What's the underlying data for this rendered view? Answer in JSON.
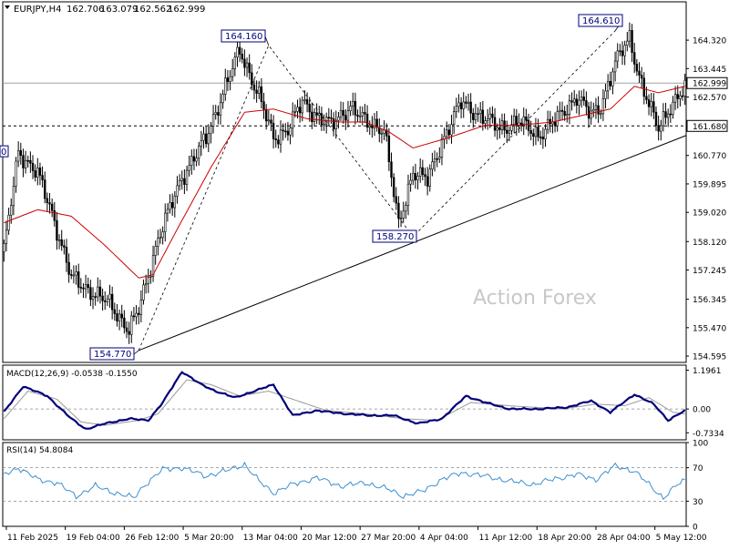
{
  "header": {
    "symbol": "EURJPY,H4",
    "open": "162.706",
    "high": "163.079",
    "low": "162.562",
    "close": "162.999"
  },
  "watermark": "Action Forex",
  "colors": {
    "candle": "#000000",
    "ma": "#cc0000",
    "macd": "#00007a",
    "signal": "#9a9a9a",
    "rsi": "#3c8fd0",
    "background": "#ffffff",
    "watermark": "#c8c8c8"
  },
  "chart_data": [
    {
      "type": "candlestick",
      "panel": "price",
      "yticks": [
        "164.320",
        "163.445",
        "162.570",
        "161.680",
        "160.770",
        "159.895",
        "159.020",
        "158.120",
        "157.245",
        "156.345",
        "155.470",
        "154.595"
      ],
      "ylim": [
        154.4,
        165.5
      ],
      "xticks": [
        "11 Feb 2025",
        "19 Feb 04:00",
        "26 Feb 12:00",
        "5 Mar 20:00",
        "13 Mar 04:00",
        "20 Mar 12:00",
        "27 Mar 20:00",
        "4 Apr 04:00",
        "11 Apr 12:00",
        "18 Apr 20:00",
        "28 Apr 04:00",
        "5 May 12:00"
      ],
      "price_levels": [
        {
          "label": "162.999",
          "value": 162.999,
          "style": "solid"
        },
        {
          "label": "161.680",
          "value": 161.68,
          "style": "dashed"
        }
      ],
      "pivot_labels": [
        {
          "label": "164.160",
          "value": 164.16
        },
        {
          "label": "164.610",
          "value": 164.61
        },
        {
          "label": "158.270",
          "value": 158.27
        },
        {
          "label": "154.770",
          "value": 154.77
        }
      ],
      "left_edge_label": "0",
      "path_anchors": [
        {
          "x": 0,
          "y": 157.8
        },
        {
          "x": 6,
          "y": 160.9
        },
        {
          "x": 14,
          "y": 160.2
        },
        {
          "x": 20,
          "y": 159.0
        },
        {
          "x": 28,
          "y": 157.0
        },
        {
          "x": 36,
          "y": 156.6
        },
        {
          "x": 44,
          "y": 156.2
        },
        {
          "x": 52,
          "y": 155.4
        },
        {
          "x": 56,
          "y": 156.0
        },
        {
          "x": 64,
          "y": 158.2
        },
        {
          "x": 74,
          "y": 160.1
        },
        {
          "x": 84,
          "y": 161.3
        },
        {
          "x": 92,
          "y": 162.9
        },
        {
          "x": 98,
          "y": 164.0
        },
        {
          "x": 106,
          "y": 162.6
        },
        {
          "x": 112,
          "y": 161.3
        },
        {
          "x": 118,
          "y": 161.6
        },
        {
          "x": 124,
          "y": 162.4
        },
        {
          "x": 130,
          "y": 162.0
        },
        {
          "x": 136,
          "y": 161.7
        },
        {
          "x": 144,
          "y": 162.3
        },
        {
          "x": 150,
          "y": 161.8
        },
        {
          "x": 158,
          "y": 161.6
        },
        {
          "x": 164,
          "y": 158.6
        },
        {
          "x": 170,
          "y": 160.3
        },
        {
          "x": 176,
          "y": 160.0
        },
        {
          "x": 182,
          "y": 161.2
        },
        {
          "x": 190,
          "y": 162.4
        },
        {
          "x": 198,
          "y": 162.0
        },
        {
          "x": 206,
          "y": 161.6
        },
        {
          "x": 214,
          "y": 161.8
        },
        {
          "x": 222,
          "y": 161.4
        },
        {
          "x": 230,
          "y": 161.9
        },
        {
          "x": 238,
          "y": 162.6
        },
        {
          "x": 244,
          "y": 162.0
        },
        {
          "x": 248,
          "y": 162.3
        },
        {
          "x": 254,
          "y": 163.6
        },
        {
          "x": 260,
          "y": 164.4
        },
        {
          "x": 264,
          "y": 163.2
        },
        {
          "x": 268,
          "y": 162.3
        },
        {
          "x": 272,
          "y": 161.6
        },
        {
          "x": 276,
          "y": 162.2
        },
        {
          "x": 283,
          "y": 162.8
        }
      ],
      "ma_anchors": [
        {
          "x": 0,
          "y": 158.7
        },
        {
          "x": 14,
          "y": 159.1
        },
        {
          "x": 28,
          "y": 158.9
        },
        {
          "x": 42,
          "y": 158.0
        },
        {
          "x": 56,
          "y": 157.0
        },
        {
          "x": 62,
          "y": 157.1
        },
        {
          "x": 72,
          "y": 158.5
        },
        {
          "x": 86,
          "y": 160.4
        },
        {
          "x": 100,
          "y": 162.1
        },
        {
          "x": 112,
          "y": 162.2
        },
        {
          "x": 126,
          "y": 161.9
        },
        {
          "x": 140,
          "y": 161.8
        },
        {
          "x": 150,
          "y": 161.8
        },
        {
          "x": 160,
          "y": 161.5
        },
        {
          "x": 170,
          "y": 161.0
        },
        {
          "x": 184,
          "y": 161.3
        },
        {
          "x": 200,
          "y": 161.7
        },
        {
          "x": 214,
          "y": 161.7
        },
        {
          "x": 228,
          "y": 161.8
        },
        {
          "x": 240,
          "y": 162.0
        },
        {
          "x": 252,
          "y": 162.2
        },
        {
          "x": 262,
          "y": 162.9
        },
        {
          "x": 272,
          "y": 162.7
        },
        {
          "x": 283,
          "y": 162.9
        }
      ],
      "trend_line": {
        "from": {
          "x": 56,
          "y": 154.77
        },
        "to": {
          "x": 283,
          "y": 161.3
        }
      },
      "zigzag": [
        {
          "x": 56,
          "y": 154.77
        },
        {
          "x": 110,
          "y": 164.16
        },
        {
          "x": 170,
          "y": 158.27
        },
        {
          "x": 254,
          "y": 164.61
        }
      ]
    },
    {
      "type": "line",
      "panel": "macd",
      "title": "MACD(12,26,9) -0.0538 -0.1550",
      "yticks": [
        "1.1961",
        "0.00",
        "-0.7334"
      ],
      "ylim": [
        -0.95,
        1.35
      ],
      "zero_line": 0,
      "series": [
        {
          "name": "MACD",
          "anchors": [
            {
              "x": 0,
              "y": -0.1
            },
            {
              "x": 8,
              "y": 0.7
            },
            {
              "x": 18,
              "y": 0.4
            },
            {
              "x": 28,
              "y": -0.3
            },
            {
              "x": 34,
              "y": -0.62
            },
            {
              "x": 42,
              "y": -0.45
            },
            {
              "x": 52,
              "y": -0.3
            },
            {
              "x": 60,
              "y": -0.35
            },
            {
              "x": 66,
              "y": 0.2
            },
            {
              "x": 74,
              "y": 1.15
            },
            {
              "x": 82,
              "y": 0.75
            },
            {
              "x": 88,
              "y": 0.55
            },
            {
              "x": 96,
              "y": 0.35
            },
            {
              "x": 104,
              "y": 0.55
            },
            {
              "x": 112,
              "y": 0.75
            },
            {
              "x": 120,
              "y": -0.2
            },
            {
              "x": 130,
              "y": -0.05
            },
            {
              "x": 142,
              "y": -0.15
            },
            {
              "x": 152,
              "y": -0.2
            },
            {
              "x": 162,
              "y": -0.2
            },
            {
              "x": 172,
              "y": -0.45
            },
            {
              "x": 182,
              "y": -0.3
            },
            {
              "x": 192,
              "y": 0.4
            },
            {
              "x": 200,
              "y": 0.2
            },
            {
              "x": 210,
              "y": 0.0
            },
            {
              "x": 222,
              "y": 0.0
            },
            {
              "x": 234,
              "y": 0.05
            },
            {
              "x": 244,
              "y": 0.25
            },
            {
              "x": 252,
              "y": -0.1
            },
            {
              "x": 262,
              "y": 0.45
            },
            {
              "x": 270,
              "y": 0.15
            },
            {
              "x": 276,
              "y": -0.35
            },
            {
              "x": 283,
              "y": -0.05
            }
          ]
        },
        {
          "name": "Signal",
          "anchors": [
            {
              "x": 0,
              "y": -0.3
            },
            {
              "x": 10,
              "y": 0.55
            },
            {
              "x": 22,
              "y": 0.3
            },
            {
              "x": 32,
              "y": -0.4
            },
            {
              "x": 42,
              "y": -0.5
            },
            {
              "x": 56,
              "y": -0.35
            },
            {
              "x": 64,
              "y": -0.15
            },
            {
              "x": 76,
              "y": 0.9
            },
            {
              "x": 86,
              "y": 0.75
            },
            {
              "x": 98,
              "y": 0.4
            },
            {
              "x": 110,
              "y": 0.55
            },
            {
              "x": 120,
              "y": 0.3
            },
            {
              "x": 134,
              "y": -0.05
            },
            {
              "x": 150,
              "y": -0.15
            },
            {
              "x": 166,
              "y": -0.3
            },
            {
              "x": 180,
              "y": -0.35
            },
            {
              "x": 194,
              "y": 0.2
            },
            {
              "x": 210,
              "y": 0.1
            },
            {
              "x": 232,
              "y": 0.0
            },
            {
              "x": 246,
              "y": 0.15
            },
            {
              "x": 258,
              "y": 0.1
            },
            {
              "x": 268,
              "y": 0.35
            },
            {
              "x": 278,
              "y": -0.1
            },
            {
              "x": 283,
              "y": -0.15
            }
          ]
        }
      ]
    },
    {
      "type": "line",
      "panel": "rsi",
      "title": "RSI(14) 54.8084",
      "yticks": [
        "100",
        "70",
        "30",
        "0"
      ],
      "ylim": [
        0,
        100
      ],
      "levels": [
        70,
        30
      ],
      "series": [
        {
          "name": "RSI",
          "anchors": [
            {
              "x": 0,
              "y": 62
            },
            {
              "x": 6,
              "y": 70
            },
            {
              "x": 14,
              "y": 56
            },
            {
              "x": 22,
              "y": 52
            },
            {
              "x": 30,
              "y": 36
            },
            {
              "x": 38,
              "y": 48
            },
            {
              "x": 46,
              "y": 40
            },
            {
              "x": 54,
              "y": 34
            },
            {
              "x": 58,
              "y": 48
            },
            {
              "x": 66,
              "y": 68
            },
            {
              "x": 74,
              "y": 70
            },
            {
              "x": 84,
              "y": 60
            },
            {
              "x": 92,
              "y": 66
            },
            {
              "x": 100,
              "y": 74
            },
            {
              "x": 106,
              "y": 54
            },
            {
              "x": 112,
              "y": 40
            },
            {
              "x": 120,
              "y": 50
            },
            {
              "x": 130,
              "y": 58
            },
            {
              "x": 140,
              "y": 48
            },
            {
              "x": 150,
              "y": 52
            },
            {
              "x": 160,
              "y": 44
            },
            {
              "x": 166,
              "y": 36
            },
            {
              "x": 174,
              "y": 42
            },
            {
              "x": 182,
              "y": 56
            },
            {
              "x": 190,
              "y": 64
            },
            {
              "x": 200,
              "y": 60
            },
            {
              "x": 210,
              "y": 54
            },
            {
              "x": 220,
              "y": 50
            },
            {
              "x": 228,
              "y": 56
            },
            {
              "x": 238,
              "y": 62
            },
            {
              "x": 246,
              "y": 56
            },
            {
              "x": 254,
              "y": 72
            },
            {
              "x": 262,
              "y": 66
            },
            {
              "x": 268,
              "y": 50
            },
            {
              "x": 274,
              "y": 34
            },
            {
              "x": 280,
              "y": 50
            },
            {
              "x": 283,
              "y": 55
            }
          ]
        }
      ]
    }
  ]
}
